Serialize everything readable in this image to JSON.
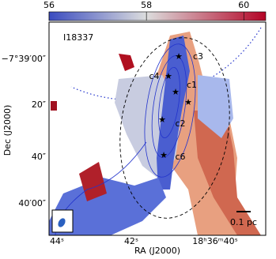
{
  "chart_data": {
    "type": "map",
    "source_label": "I18337",
    "colorbar": {
      "clim": [
        56,
        60.45
      ],
      "ticks": [
        56,
        58,
        60
      ]
    },
    "x_label": "RA (J2000)",
    "y_label": "Dec (J2000)",
    "xtick_labels": [
      "44ˢ",
      "42ˢ",
      "18ʰ36ᵐ40ˢ"
    ],
    "ytick_labels": [
      "−7°39′00″",
      "20″",
      "40″",
      "40′00″"
    ],
    "cores": [
      "c3",
      "c4",
      "c1",
      "c2",
      "c6"
    ],
    "scale_bar": "0.1 pc"
  }
}
